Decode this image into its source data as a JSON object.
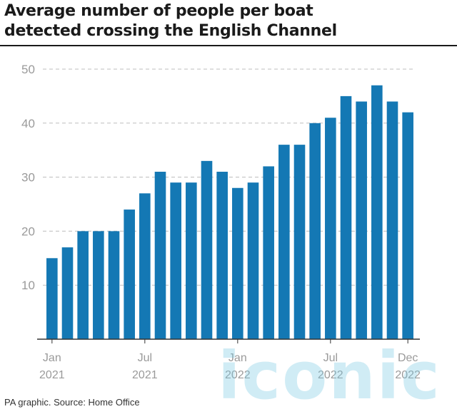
{
  "header": {
    "title_line1": "Average number of people per boat",
    "title_line2": "detected crossing the English Channel"
  },
  "footer": {
    "source": "PA graphic. Source: Home Office",
    "watermark": "iconic"
  },
  "colors": {
    "bar": "#1478b4",
    "gridline": "#bdbdbd",
    "axis": "#333333",
    "tick_text": "#9a9a9a"
  },
  "chart_data": {
    "type": "bar",
    "title": "Average number of people per boat detected crossing the English Channel",
    "xlabel": "",
    "ylabel": "",
    "ylim": [
      0,
      50
    ],
    "yticks": [
      10,
      20,
      30,
      40,
      50
    ],
    "grid": true,
    "categories": [
      "Jan 2021",
      "Feb 2021",
      "Mar 2021",
      "Apr 2021",
      "May 2021",
      "Jun 2021",
      "Jul 2021",
      "Aug 2021",
      "Sep 2021",
      "Oct 2021",
      "Nov 2021",
      "Dec 2021",
      "Jan 2022",
      "Feb 2022",
      "Mar 2022",
      "Apr 2022",
      "May 2022",
      "Jun 2022",
      "Jul 2022",
      "Aug 2022",
      "Sep 2022",
      "Oct 2022",
      "Nov 2022",
      "Dec 2022"
    ],
    "values": [
      15,
      17,
      20,
      20,
      20,
      24,
      27,
      31,
      29,
      29,
      33,
      31,
      28,
      29,
      32,
      36,
      36,
      40,
      41,
      45,
      44,
      47,
      44,
      42
    ],
    "x_tick_labels": [
      {
        "index": 0,
        "line1": "Jan",
        "line2": "2021"
      },
      {
        "index": 6,
        "line1": "Jul",
        "line2": "2021"
      },
      {
        "index": 12,
        "line1": "Jan",
        "line2": "2022"
      },
      {
        "index": 18,
        "line1": "Jul",
        "line2": "2022"
      },
      {
        "index": 23,
        "line1": "Dec",
        "line2": "2022"
      }
    ]
  }
}
